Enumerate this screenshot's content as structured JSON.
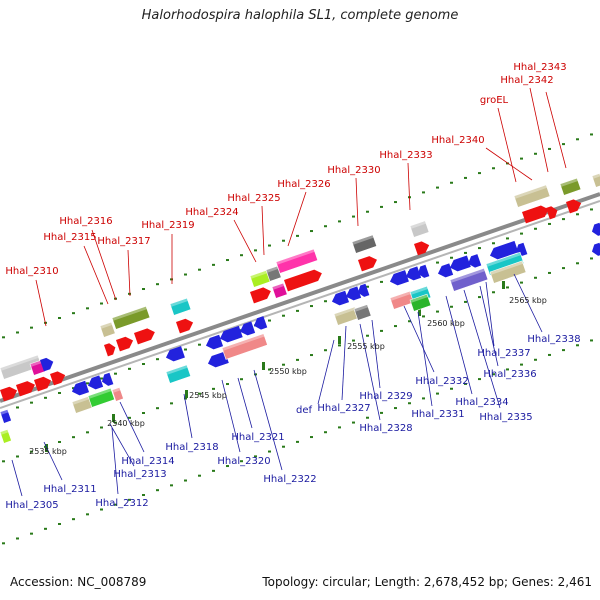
{
  "title": "Halorhodospira halophila SL1, complete genome",
  "footer": {
    "accession": "Accession: NC_008789",
    "stats": "Topology: circular; Length: 2,678,452 bp; Genes: 2,461"
  },
  "colors": {
    "backbone": "#8a8a8a",
    "tick": "#2a7a1a",
    "label_above": "#cc0000",
    "label_below": "#1a1aa0"
  },
  "kbp_labels": [
    "2535 kbp",
    "2540 kbp",
    "2545 kbp",
    "2550 kbp",
    "2555 kbp",
    "2560 kbp",
    "2565 kbp"
  ],
  "genes_above": [
    "Hhal_2310",
    "Hhal_2315",
    "Hhal_2316",
    "Hhal_2317",
    "Hhal_2319",
    "Hhal_2324",
    "Hhal_2325",
    "Hhal_2326",
    "Hhal_2330",
    "Hhal_2333",
    "Hhal_2340",
    "groEL",
    "Hhal_2342",
    "Hhal_2343"
  ],
  "genes_below": [
    "Hhal_2305",
    "Hhal_2311",
    "Hhal_2312",
    "Hhal_2313",
    "Hhal_2314",
    "Hhal_2318",
    "Hhal_2320",
    "Hhal_2321",
    "Hhal_2322",
    "def",
    "Hhal_2327",
    "Hhal_2328",
    "Hhal_2329",
    "Hhal_2331",
    "Hhal_2332",
    "Hhal_2334",
    "Hhal_2335",
    "Hhal_2336",
    "Hhal_2337",
    "Hhal_2338"
  ]
}
